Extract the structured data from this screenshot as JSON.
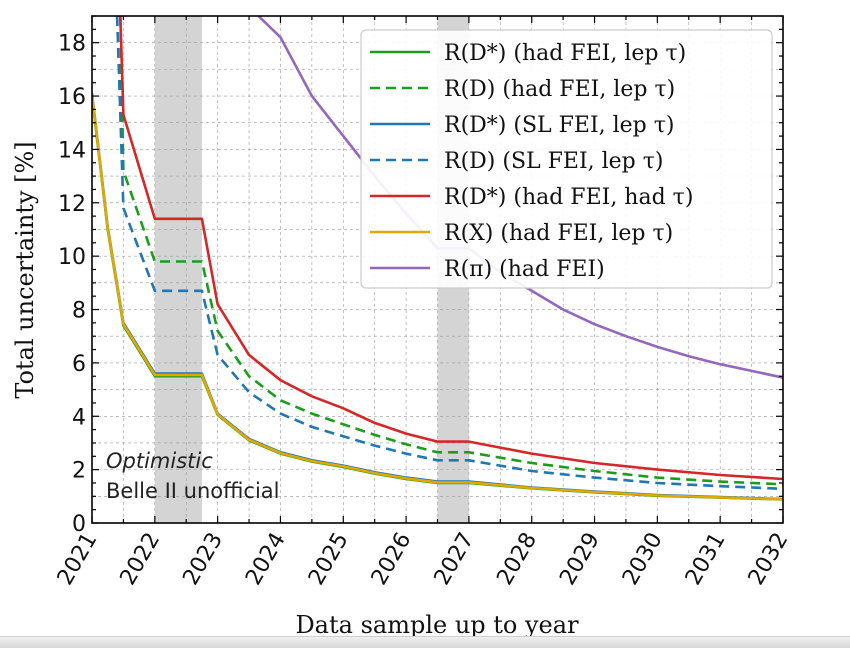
{
  "chart_data": {
    "type": "line",
    "xlabel": "Data sample up to year",
    "ylabel": "Total uncertainty [%]",
    "xlim": [
      2021,
      2032
    ],
    "ylim": [
      0,
      19
    ],
    "xticks": [
      "2021",
      "2022",
      "2023",
      "2024",
      "2025",
      "2026",
      "2027",
      "2028",
      "2029",
      "2030",
      "2031",
      "2032"
    ],
    "yticks": [
      "0",
      "2",
      "4",
      "6",
      "8",
      "10",
      "12",
      "14",
      "16",
      "18"
    ],
    "grid": true,
    "legend_position": "top-right",
    "shaded_regions": [
      [
        2022.0,
        2022.75
      ],
      [
        2026.5,
        2027.0
      ]
    ],
    "annotations": [
      "Optimistic",
      "Belle II unofficial"
    ],
    "series": [
      {
        "name": "R(D*) (had FEI, lep τ)",
        "color": "#1a9e1a",
        "dash": "solid",
        "x": [
          2021,
          2021.25,
          2021.5,
          2022,
          2022.75,
          2023,
          2023.5,
          2024,
          2024.5,
          2025,
          2025.5,
          2026,
          2026.5,
          2027,
          2028,
          2029,
          2030,
          2031,
          2032
        ],
        "y": [
          16.0,
          11.0,
          7.4,
          5.5,
          5.5,
          4.05,
          3.1,
          2.6,
          2.3,
          2.1,
          1.85,
          1.65,
          1.5,
          1.5,
          1.3,
          1.15,
          1.02,
          0.95,
          0.88
        ]
      },
      {
        "name": "R(D) (had FEI, lep τ)",
        "color": "#1a9e1a",
        "dash": "dashed",
        "x": [
          2021.45,
          2021.5,
          2022,
          2022.75,
          2023,
          2023.5,
          2024,
          2024.5,
          2025,
          2025.5,
          2026,
          2026.5,
          2027,
          2028,
          2029,
          2030,
          2031,
          2032
        ],
        "y": [
          19.0,
          13.2,
          9.8,
          9.8,
          7.2,
          5.5,
          4.6,
          4.1,
          3.7,
          3.3,
          2.95,
          2.65,
          2.65,
          2.25,
          1.95,
          1.7,
          1.55,
          1.45
        ]
      },
      {
        "name": "R(D*) (SL FEI, lep τ)",
        "color": "#1f77b4",
        "dash": "solid",
        "x": [
          2021,
          2021.25,
          2021.5,
          2022,
          2022.75,
          2023,
          2023.5,
          2024,
          2024.5,
          2025,
          2025.5,
          2026,
          2026.5,
          2027,
          2028,
          2029,
          2030,
          2031,
          2032
        ],
        "y": [
          16.1,
          11.1,
          7.5,
          5.6,
          5.6,
          4.1,
          3.15,
          2.65,
          2.35,
          2.15,
          1.9,
          1.7,
          1.55,
          1.55,
          1.33,
          1.18,
          1.05,
          0.97,
          0.9
        ]
      },
      {
        "name": "R(D) (SL FEI, lep τ)",
        "color": "#1f77b4",
        "dash": "dashed",
        "x": [
          2021.4,
          2021.5,
          2022,
          2022.75,
          2023,
          2023.5,
          2024,
          2024.5,
          2025,
          2025.5,
          2026,
          2026.5,
          2027,
          2028,
          2029,
          2030,
          2031,
          2032
        ],
        "y": [
          19.0,
          11.8,
          8.7,
          8.7,
          6.3,
          4.9,
          4.1,
          3.6,
          3.25,
          2.9,
          2.6,
          2.35,
          2.35,
          1.95,
          1.7,
          1.5,
          1.38,
          1.28
        ]
      },
      {
        "name": "R(D*) (had FEI, had τ)",
        "color": "#d62728",
        "dash": "solid",
        "x": [
          2021.45,
          2021.5,
          2022,
          2022.75,
          2023,
          2023.5,
          2024,
          2024.5,
          2025,
          2025.5,
          2026,
          2026.5,
          2027,
          2028,
          2029,
          2030,
          2031,
          2032
        ],
        "y": [
          19.0,
          15.3,
          11.4,
          11.4,
          8.2,
          6.3,
          5.35,
          4.75,
          4.3,
          3.75,
          3.35,
          3.05,
          3.05,
          2.6,
          2.25,
          2.0,
          1.8,
          1.65
        ]
      },
      {
        "name": "R(X) (had FEI, lep τ)",
        "color": "#e0a800",
        "dash": "solid",
        "x": [
          2021,
          2021.25,
          2021.5,
          2022,
          2022.75,
          2023,
          2023.5,
          2024,
          2024.5,
          2025,
          2025.5,
          2026,
          2026.5,
          2027,
          2028,
          2029,
          2030,
          2031,
          2032
        ],
        "y": [
          16.05,
          11.05,
          7.45,
          5.55,
          5.55,
          4.07,
          3.12,
          2.62,
          2.32,
          2.12,
          1.87,
          1.67,
          1.52,
          1.52,
          1.31,
          1.16,
          1.03,
          0.96,
          0.89
        ]
      },
      {
        "name": "R(π) (had FEI)",
        "color": "#9467bd",
        "dash": "solid",
        "x": [
          2023.65,
          2024,
          2024.5,
          2025,
          2025.5,
          2026,
          2026.5,
          2027,
          2027.5,
          2028,
          2028.5,
          2029,
          2029.5,
          2030,
          2030.5,
          2031,
          2031.5,
          2032
        ],
        "y": [
          19.0,
          18.2,
          16.0,
          14.5,
          13.0,
          11.6,
          10.3,
          10.3,
          9.4,
          8.7,
          8.0,
          7.45,
          7.0,
          6.6,
          6.25,
          5.95,
          5.7,
          5.45
        ]
      }
    ]
  }
}
